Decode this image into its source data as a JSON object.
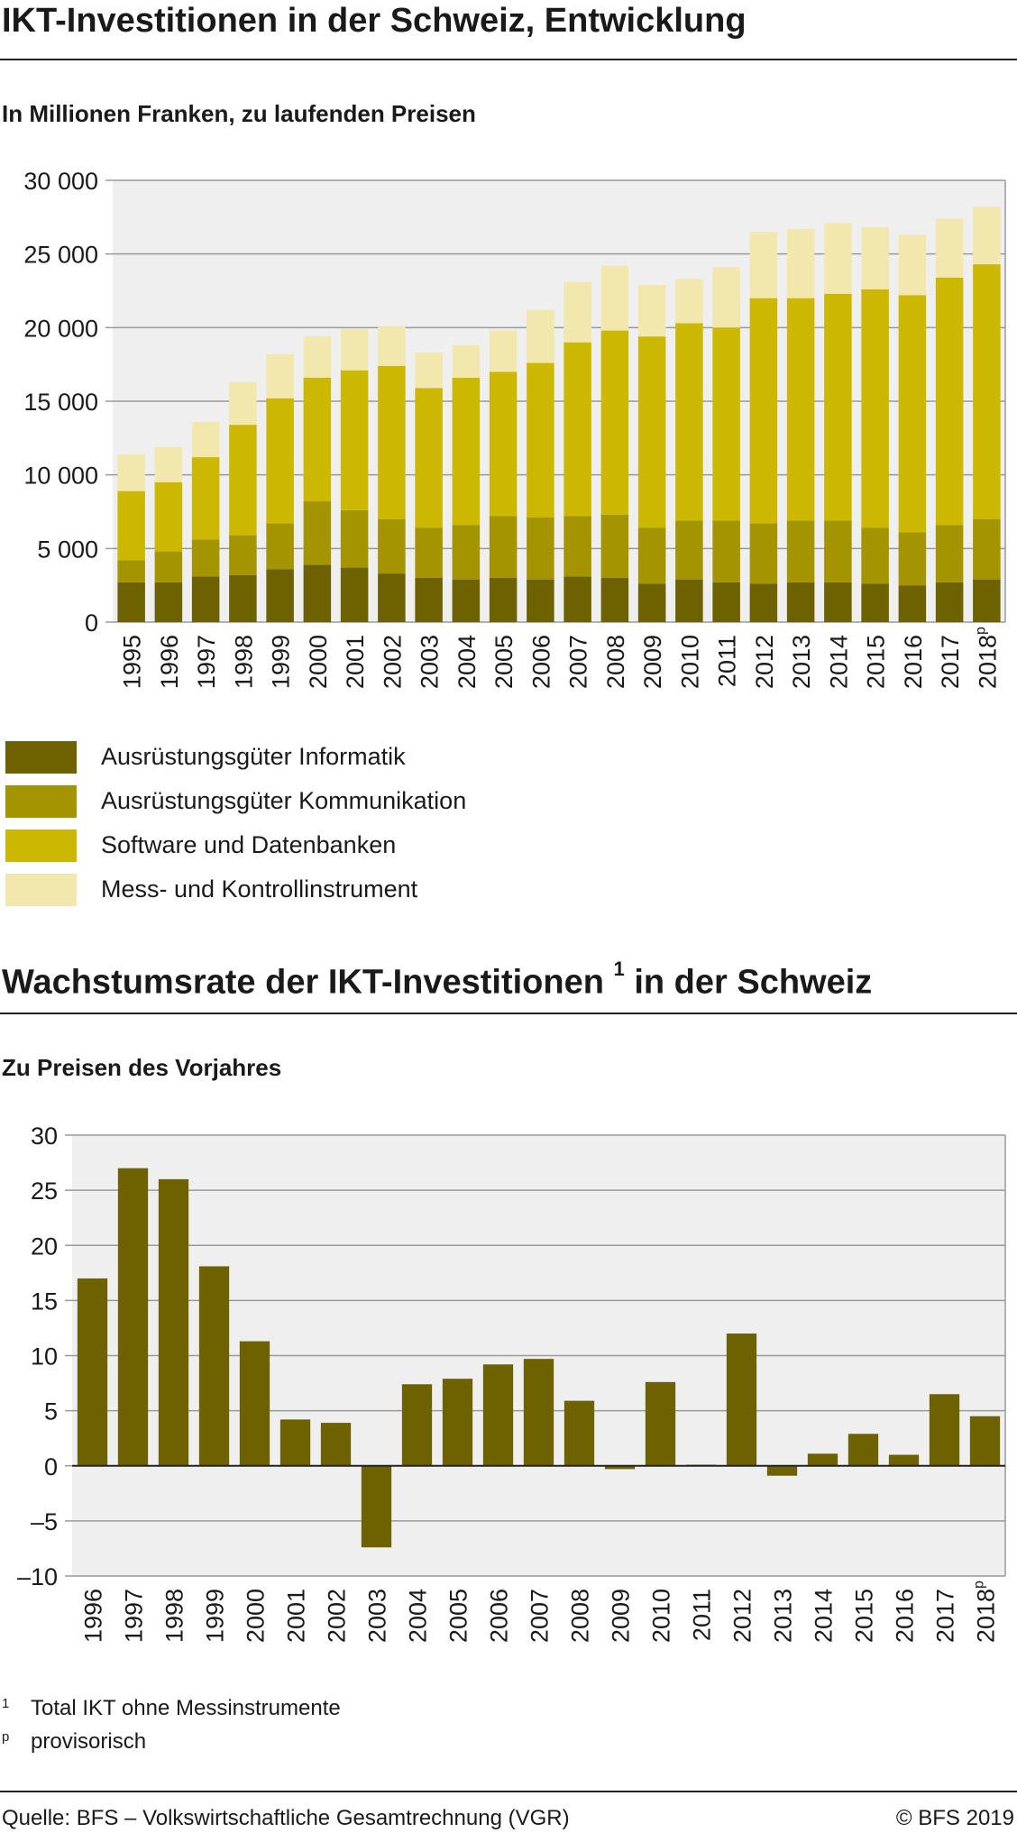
{
  "chart_data": [
    {
      "type": "bar",
      "stacked": true,
      "title": "IKT-Investitionen in der Schweiz, Entwicklung",
      "subtitle": "In Millionen Franken, zu laufenden Preisen",
      "categories": [
        "1995",
        "1996",
        "1997",
        "1998",
        "1999",
        "2000",
        "2001",
        "2002",
        "2003",
        "2004",
        "2005",
        "2006",
        "2007",
        "2008",
        "2009",
        "2010",
        "2011",
        "2012",
        "2013",
        "2014",
        "2015",
        "2016",
        "2017",
        "2018"
      ],
      "category_superscripts": {
        "2018": "p"
      },
      "ylim": [
        0,
        30000
      ],
      "yticks": [
        0,
        5000,
        10000,
        15000,
        20000,
        25000,
        30000
      ],
      "ytick_labels": [
        "0",
        "5 000",
        "10 000",
        "15 000",
        "20 000",
        "25 000",
        "30 000"
      ],
      "grid": true,
      "legend_position": "bottom",
      "series": [
        {
          "name": "Ausrüstungsgüter Informatik",
          "color": "#6e6200",
          "values": [
            2700,
            2700,
            3100,
            3200,
            3600,
            3900,
            3700,
            3300,
            3000,
            2900,
            3000,
            2900,
            3100,
            3000,
            2600,
            2900,
            2700,
            2600,
            2700,
            2700,
            2600,
            2500,
            2700,
            2900
          ]
        },
        {
          "name": "Ausrüstungsgüter Kommunikation",
          "color": "#a39400",
          "values": [
            1500,
            2100,
            2500,
            2700,
            3100,
            4300,
            3900,
            3700,
            3400,
            3700,
            4200,
            4200,
            4100,
            4300,
            3800,
            4000,
            4200,
            4100,
            4200,
            4200,
            3800,
            3600,
            3900,
            4100
          ]
        },
        {
          "name": "Software und Datenbanken",
          "color": "#ccb800",
          "values": [
            4700,
            4700,
            5600,
            7500,
            8500,
            8400,
            9500,
            10400,
            9500,
            10000,
            9800,
            10500,
            11800,
            12500,
            13000,
            13400,
            13100,
            15300,
            15100,
            15400,
            16200,
            16100,
            16800,
            17300
          ]
        },
        {
          "name": "Mess-  und Kontrollinstrument",
          "color": "#f2e7ac",
          "values": [
            2500,
            2400,
            2400,
            2900,
            3000,
            2800,
            2800,
            2700,
            2400,
            2200,
            2800,
            3600,
            4100,
            4400,
            3500,
            3000,
            4100,
            4500,
            4700,
            4800,
            4200,
            4100,
            4000,
            3900
          ]
        }
      ]
    },
    {
      "type": "bar",
      "title": "Wachstumsrate der IKT-Investitionen",
      "title_superscript": "1",
      "title_suffix": "in der Schweiz",
      "subtitle": "Zu Preisen des Vorjahres",
      "categories": [
        "1996",
        "1997",
        "1998",
        "1999",
        "2000",
        "2001",
        "2002",
        "2003",
        "2004",
        "2005",
        "2006",
        "2007",
        "2008",
        "2009",
        "2010",
        "2011",
        "2012",
        "2013",
        "2014",
        "2015",
        "2016",
        "2017",
        "2018"
      ],
      "category_superscripts": {
        "2018": "p"
      },
      "values": [
        17.0,
        27.0,
        26.0,
        18.1,
        11.3,
        4.2,
        3.9,
        -7.4,
        7.4,
        7.9,
        9.2,
        9.7,
        5.9,
        -0.3,
        7.6,
        0.1,
        12.0,
        -0.9,
        1.1,
        2.9,
        1.0,
        6.5,
        4.5
      ],
      "color": "#6e6200",
      "ylim": [
        -10,
        30
      ],
      "yticks": [
        -10,
        -5,
        0,
        5,
        10,
        15,
        20,
        25,
        30
      ],
      "ytick_labels": [
        "–10",
        "–5",
        "0",
        "5",
        "10",
        "15",
        "20",
        "25",
        "30"
      ],
      "grid": true
    }
  ],
  "notes": [
    {
      "mark": "1",
      "text": "Total IKT ohne Messinstrumente"
    },
    {
      "mark": "p",
      "text": "provisorisch"
    }
  ],
  "footer": {
    "source": "Quelle: BFS – Volkswirtschaftliche Gesamtrechnung (VGR)",
    "copyright": "© BFS 2019"
  }
}
